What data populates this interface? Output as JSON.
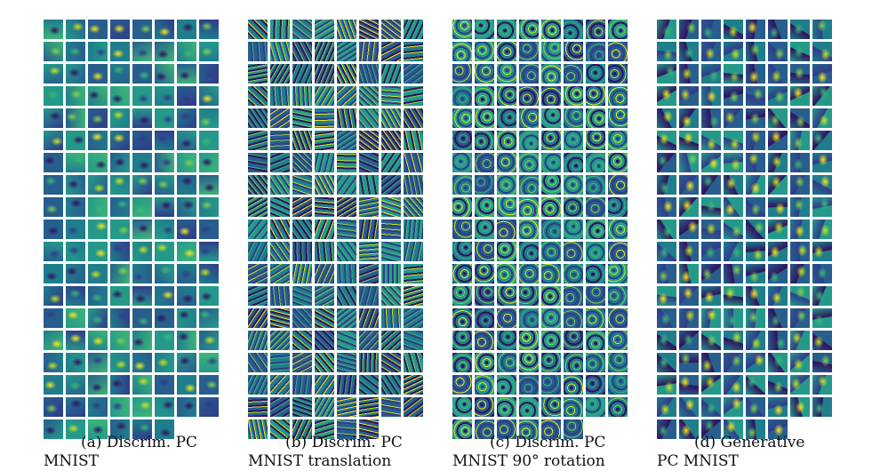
{
  "figure": {
    "palette": [
      "#30125e",
      "#2f3c8a",
      "#275e8d",
      "#1f7d8c",
      "#24998a",
      "#3cb578",
      "#7fd04e",
      "#c7e222",
      "#f4e61e"
    ],
    "panels": [
      {
        "id": "a",
        "caption_line1": "(a) Discrim. PC",
        "caption_line2": "MNIST",
        "tiles": 150,
        "pattern": "digit-blob"
      },
      {
        "id": "b",
        "caption_line1": "(b) Discrim. PC",
        "caption_line2": "MNIST translation",
        "tiles": 150,
        "pattern": "oriented-stripes"
      },
      {
        "id": "c",
        "caption_line1": "(c) Discrim. PC",
        "caption_line2": "MNIST 90° rotation",
        "tiles": 150,
        "pattern": "radial-rings"
      },
      {
        "id": "d",
        "caption_line1": "(d) Generative",
        "caption_line2": "PC MNIST",
        "tiles": 150,
        "pattern": "digit-strokes"
      }
    ]
  }
}
